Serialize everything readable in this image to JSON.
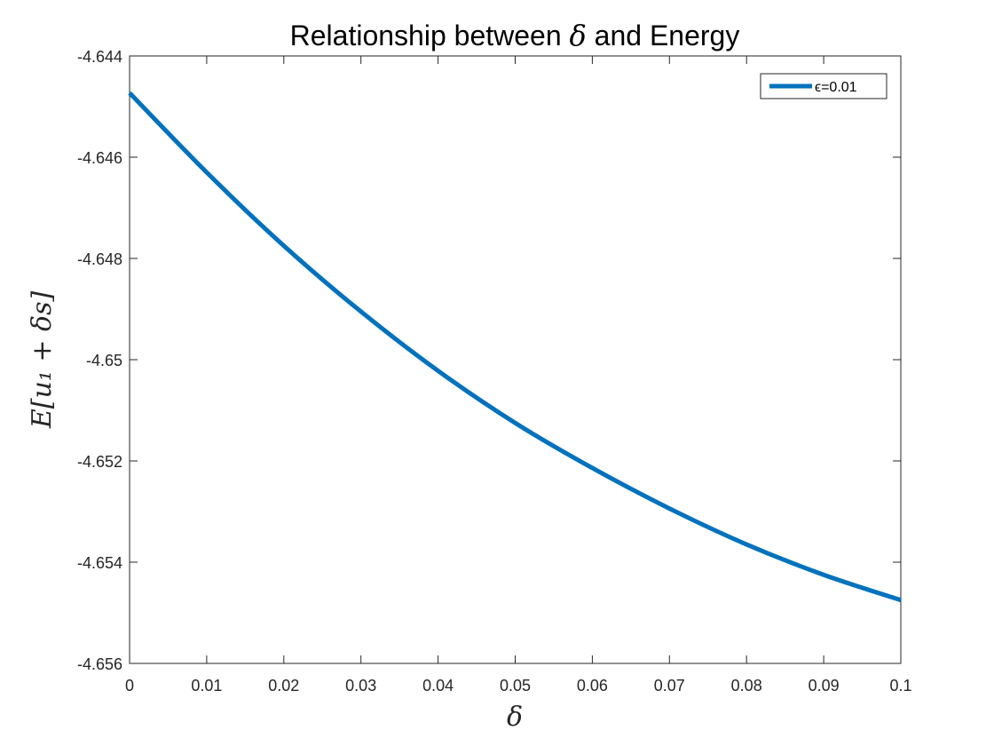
{
  "chart_data": {
    "type": "line",
    "title_pre": "Relationship between ",
    "title_symbol": "δ",
    "title_post": " and Energy",
    "xlabel": "δ",
    "ylabel": "E[u₁ + δs]",
    "xlim": [
      0,
      0.1
    ],
    "ylim": [
      -4.656,
      -4.644
    ],
    "xticks": [
      0,
      0.01,
      0.02,
      0.03,
      0.04,
      0.05,
      0.06,
      0.07,
      0.08,
      0.09,
      0.1
    ],
    "xtick_labels": [
      "0",
      "0.01",
      "0.02",
      "0.03",
      "0.04",
      "0.05",
      "0.06",
      "0.07",
      "0.08",
      "0.09",
      "0.1"
    ],
    "yticks": [
      -4.644,
      -4.646,
      -4.648,
      -4.65,
      -4.652,
      -4.654,
      -4.656
    ],
    "ytick_labels": [
      "-4.644",
      "-4.646",
      "-4.648",
      "-4.65",
      "-4.652",
      "-4.654",
      "-4.656"
    ],
    "grid": false,
    "legend_position": "top-right",
    "series": [
      {
        "name": "ϵ=0.01",
        "color": "#0072BD",
        "x": [
          0,
          0.01,
          0.02,
          0.03,
          0.04,
          0.05,
          0.06,
          0.07,
          0.08,
          0.09,
          0.1
        ],
        "y": [
          -4.64473,
          -4.6463,
          -4.64775,
          -4.64905,
          -4.65022,
          -4.65125,
          -4.65214,
          -4.65294,
          -4.65365,
          -4.65425,
          -4.65475
        ]
      }
    ]
  }
}
